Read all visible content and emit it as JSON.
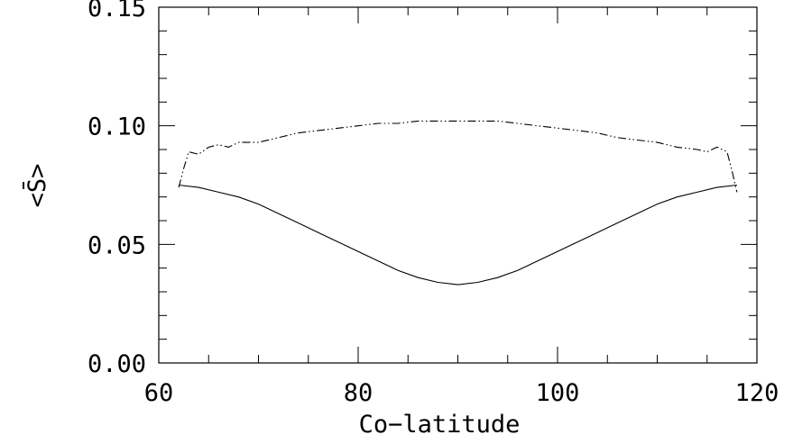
{
  "chart_data": {
    "type": "line",
    "xlabel": "Co−latitude",
    "ylabel": "<S̄>",
    "xlim": [
      60,
      120
    ],
    "ylim": [
      0.0,
      0.15
    ],
    "x_ticks": [
      60,
      80,
      100,
      120
    ],
    "x_tick_labels": [
      "60",
      "80",
      "100",
      "120"
    ],
    "y_ticks": [
      0.0,
      0.05,
      0.1,
      0.15
    ],
    "y_tick_labels": [
      "0.00",
      "0.05",
      "0.10",
      "0.15"
    ],
    "grid": false,
    "series": [
      {
        "style": "solid",
        "x": [
          62,
          64,
          66,
          68,
          70,
          72,
          74,
          76,
          78,
          80,
          82,
          84,
          86,
          88,
          90,
          92,
          94,
          96,
          98,
          100,
          102,
          104,
          106,
          108,
          110,
          112,
          114,
          116,
          118
        ],
        "y": [
          0.075,
          0.074,
          0.072,
          0.07,
          0.067,
          0.063,
          0.059,
          0.055,
          0.051,
          0.047,
          0.043,
          0.039,
          0.036,
          0.034,
          0.033,
          0.034,
          0.036,
          0.039,
          0.043,
          0.047,
          0.051,
          0.055,
          0.059,
          0.063,
          0.067,
          0.07,
          0.072,
          0.074,
          0.075
        ]
      },
      {
        "style": "dash-dot-dot",
        "x": [
          62,
          62.5,
          63,
          64,
          65,
          66,
          67,
          68,
          70,
          72,
          74,
          76,
          78,
          80,
          82,
          84,
          86,
          88,
          90,
          92,
          94,
          96,
          98,
          100,
          102,
          104,
          106,
          108,
          110,
          112,
          114,
          115,
          116,
          117,
          117.5,
          118
        ],
        "y": [
          0.074,
          0.082,
          0.089,
          0.088,
          0.091,
          0.092,
          0.091,
          0.093,
          0.093,
          0.095,
          0.097,
          0.098,
          0.099,
          0.1,
          0.101,
          0.101,
          0.102,
          0.102,
          0.102,
          0.102,
          0.102,
          0.101,
          0.1,
          0.099,
          0.098,
          0.097,
          0.095,
          0.094,
          0.093,
          0.091,
          0.09,
          0.089,
          0.091,
          0.089,
          0.081,
          0.072
        ]
      }
    ]
  }
}
